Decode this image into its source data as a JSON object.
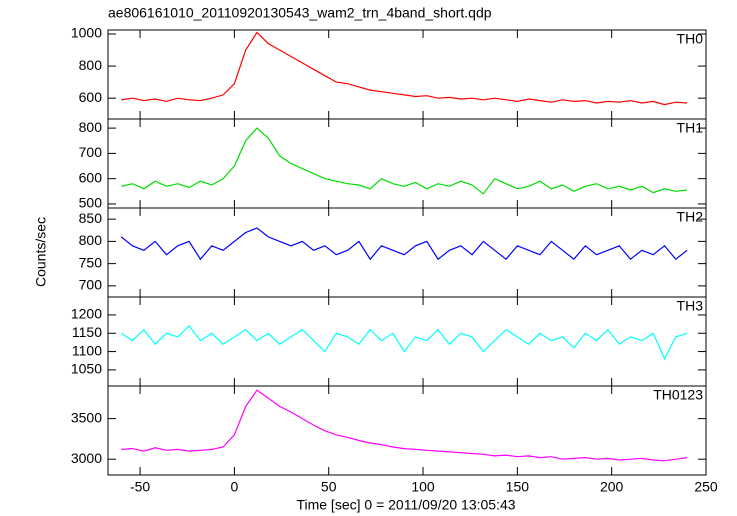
{
  "chart_data": {
    "type": "line",
    "title": "ae806161010_20110920130543_wam2_trn_4band_short.qdp",
    "xlabel": "Time [sec] 0 = 2011/09/20 13:05:43",
    "ylabel": "Counts/sec",
    "xlim": [
      -67,
      250
    ],
    "xticks": [
      -50,
      0,
      50,
      100,
      150,
      200,
      250
    ],
    "x": [
      -60,
      -54,
      -48,
      -42,
      -36,
      -30,
      -24,
      -18,
      -12,
      -6,
      0,
      6,
      12,
      18,
      24,
      30,
      36,
      42,
      48,
      54,
      60,
      66,
      72,
      78,
      84,
      90,
      96,
      102,
      108,
      114,
      120,
      126,
      132,
      138,
      144,
      150,
      156,
      162,
      168,
      174,
      180,
      186,
      192,
      198,
      204,
      210,
      216,
      222,
      228,
      234,
      240
    ],
    "series": [
      {
        "name": "TH0",
        "color": "#ff0000",
        "ylim": [
          470,
          1025
        ],
        "yticks": [
          600,
          800,
          1000
        ],
        "values": [
          590,
          600,
          585,
          595,
          580,
          600,
          590,
          585,
          600,
          620,
          690,
          900,
          1010,
          940,
          900,
          860,
          820,
          780,
          740,
          700,
          690,
          670,
          650,
          640,
          630,
          620,
          610,
          615,
          600,
          605,
          595,
          600,
          590,
          600,
          590,
          580,
          595,
          585,
          575,
          590,
          580,
          585,
          570,
          580,
          575,
          585,
          570,
          580,
          560,
          575,
          570
        ]
      },
      {
        "name": "TH1",
        "color": "#00dd00",
        "ylim": [
          484,
          836
        ],
        "yticks": [
          500,
          600,
          700,
          800
        ],
        "values": [
          570,
          580,
          560,
          590,
          570,
          580,
          565,
          590,
          575,
          600,
          650,
          750,
          800,
          760,
          690,
          660,
          640,
          620,
          600,
          590,
          580,
          575,
          560,
          600,
          580,
          570,
          585,
          560,
          580,
          570,
          590,
          575,
          540,
          600,
          580,
          560,
          570,
          590,
          560,
          575,
          550,
          570,
          580,
          560,
          570,
          555,
          570,
          545,
          560,
          550,
          555
        ]
      },
      {
        "name": "TH2",
        "color": "#0000ff",
        "ylim": [
          675,
          875
        ],
        "yticks": [
          700,
          750,
          800,
          850
        ],
        "values": [
          810,
          790,
          780,
          800,
          770,
          790,
          800,
          760,
          790,
          780,
          800,
          820,
          830,
          810,
          800,
          790,
          800,
          780,
          790,
          770,
          780,
          800,
          760,
          790,
          780,
          770,
          790,
          800,
          760,
          780,
          790,
          770,
          800,
          780,
          760,
          790,
          780,
          770,
          800,
          780,
          760,
          790,
          770,
          780,
          790,
          760,
          780,
          770,
          790,
          760,
          780
        ]
      },
      {
        "name": "TH3",
        "color": "#00ffff",
        "ylim": [
          1006,
          1249
        ],
        "yticks": [
          1050,
          1100,
          1150,
          1200
        ],
        "values": [
          1150,
          1130,
          1160,
          1120,
          1150,
          1140,
          1170,
          1130,
          1150,
          1120,
          1140,
          1160,
          1130,
          1150,
          1120,
          1140,
          1160,
          1130,
          1100,
          1150,
          1140,
          1120,
          1160,
          1130,
          1150,
          1100,
          1140,
          1130,
          1160,
          1120,
          1150,
          1140,
          1100,
          1130,
          1160,
          1140,
          1120,
          1150,
          1130,
          1140,
          1110,
          1150,
          1130,
          1160,
          1120,
          1140,
          1130,
          1150,
          1080,
          1140,
          1150
        ]
      },
      {
        "name": "TH0123",
        "color": "#ff00ff",
        "ylim": [
          2805,
          3902
        ],
        "yticks": [
          3000,
          3500
        ],
        "values": [
          3120,
          3130,
          3100,
          3140,
          3110,
          3120,
          3100,
          3110,
          3120,
          3150,
          3300,
          3650,
          3850,
          3750,
          3650,
          3580,
          3500,
          3420,
          3350,
          3300,
          3270,
          3230,
          3200,
          3180,
          3150,
          3130,
          3120,
          3110,
          3100,
          3090,
          3080,
          3070,
          3060,
          3040,
          3050,
          3030,
          3040,
          3020,
          3030,
          3000,
          3010,
          3020,
          3000,
          3010,
          2990,
          3000,
          3010,
          2990,
          2980,
          3000,
          3020
        ]
      }
    ]
  }
}
